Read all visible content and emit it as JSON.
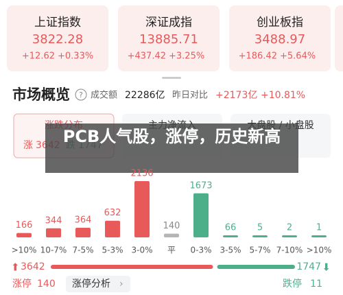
{
  "indices": [
    {
      "name": "上证指数",
      "price": "3822.28",
      "change": "+12.62",
      "pct": "+0.33%"
    },
    {
      "name": "深证成指",
      "price": "13885.71",
      "change": "+437.42",
      "pct": "+3.25%"
    },
    {
      "name": "创业板指",
      "price": "3488.97",
      "change": "+186.42",
      "pct": "+5.64%"
    }
  ],
  "market": {
    "title": "市场概览",
    "help": "?",
    "turnover_label": "成交额",
    "turnover": "22286亿",
    "compare_label": "昨日对比",
    "compare_change": "+2173亿",
    "compare_pct": "+10.81%"
  },
  "tabs": [
    "涨跌分布",
    "主力净流入",
    "大盘股 / 小盘股"
  ],
  "summary": {
    "up_label": "涨",
    "down_label": "跌"
  },
  "overlay": "PCB人气股，涨停，历史新高",
  "distribution": {
    "categories": [
      ">10%",
      "10-7%",
      "7-5%",
      "5-3%",
      "3-0%",
      "平",
      "0-3%",
      "3-5%",
      "5-7%",
      "7-10%",
      ">10%"
    ],
    "values": [
      166,
      344,
      364,
      632,
      2136,
      140,
      1673,
      66,
      5,
      2,
      1
    ],
    "colors": [
      "#e8595a",
      "#e8595a",
      "#e8595a",
      "#e8595a",
      "#e8595a",
      "#b5b5b5",
      "#4caf8a",
      "#4caf8a",
      "#4caf8a",
      "#4caf8a",
      "#4caf8a"
    ]
  },
  "totals": {
    "up": 3642,
    "down": 1747,
    "up_color": "#e8595a",
    "down_color": "#4caf8a"
  },
  "footer": {
    "limit_up_label": "涨停",
    "limit_up": 140,
    "analysis": "涨停分析",
    "limit_down_label": "跌停",
    "limit_down": 11
  }
}
